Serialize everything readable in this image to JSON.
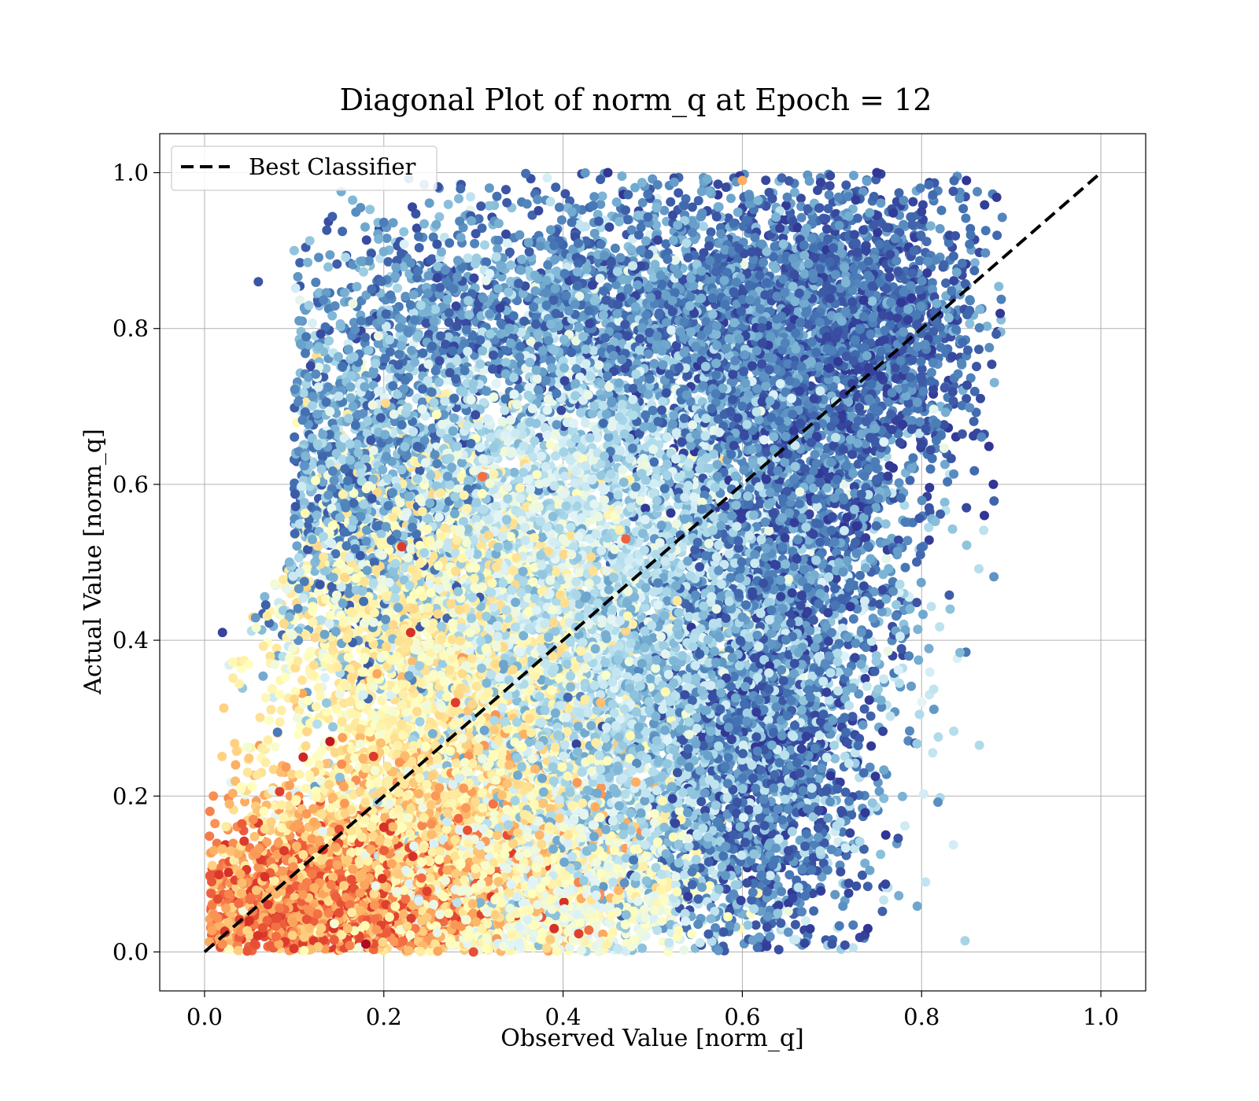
{
  "chart_data": {
    "type": "scatter",
    "title": "Diagonal Plot of norm_q at Epoch = 12",
    "xlabel": "Observed Value [norm_q]",
    "ylabel": "Actual Value [norm_q]",
    "xlim": [
      -0.05,
      1.05
    ],
    "ylim": [
      -0.05,
      1.05
    ],
    "xticks": [
      "0.0",
      "0.2",
      "0.4",
      "0.6",
      "0.8",
      "1.0"
    ],
    "yticks": [
      "0.0",
      "0.2",
      "0.4",
      "0.6",
      "0.8",
      "1.0"
    ],
    "grid": true,
    "legend": {
      "placement": "upper-left",
      "entries": [
        "Best Classifier"
      ]
    },
    "reference_line": {
      "name": "Best Classifier",
      "x": [
        0.0,
        1.0
      ],
      "y": [
        0.0,
        1.0
      ],
      "style": "dashed",
      "color": "#000000"
    },
    "colormap": "RdYlBu",
    "point_count_estimate": 20000,
    "points": [
      {
        "x": 0.02,
        "y": 0.01,
        "c": 0.75
      },
      {
        "x": 0.05,
        "y": 0.04,
        "c": 0.9
      },
      {
        "x": 0.08,
        "y": 0.02,
        "c": 0.8
      },
      {
        "x": 0.12,
        "y": 0.1,
        "c": 0.78
      },
      {
        "x": 0.15,
        "y": 0.05,
        "c": 0.85
      },
      {
        "x": 0.18,
        "y": 0.01,
        "c": 0.98
      },
      {
        "x": 0.04,
        "y": 0.1,
        "c": 0.7
      },
      {
        "x": 0.1,
        "y": 0.16,
        "c": 0.72
      },
      {
        "x": 0.14,
        "y": 0.27,
        "c": 0.95
      },
      {
        "x": 0.11,
        "y": 0.25,
        "c": 0.92
      },
      {
        "x": 0.2,
        "y": 0.16,
        "c": 0.9
      },
      {
        "x": 0.23,
        "y": 0.41,
        "c": 0.9
      },
      {
        "x": 0.22,
        "y": 0.52,
        "c": 0.88
      },
      {
        "x": 0.31,
        "y": 0.61,
        "c": 0.8
      },
      {
        "x": 0.28,
        "y": 0.32,
        "c": 0.88
      },
      {
        "x": 0.47,
        "y": 0.53,
        "c": 0.82
      },
      {
        "x": 0.39,
        "y": 0.03,
        "c": 0.9
      },
      {
        "x": 0.3,
        "y": 0.0,
        "c": 0.85
      },
      {
        "x": 0.35,
        "y": 0.35,
        "c": 0.4
      },
      {
        "x": 0.45,
        "y": 0.45,
        "c": 0.2
      },
      {
        "x": 0.6,
        "y": 0.7,
        "c": 0.1
      },
      {
        "x": 0.7,
        "y": 0.85,
        "c": 0.05
      },
      {
        "x": 0.8,
        "y": 0.95,
        "c": 0.02
      },
      {
        "x": 0.85,
        "y": 0.57,
        "c": 0.03
      },
      {
        "x": 0.87,
        "y": 0.56,
        "c": 0.0
      },
      {
        "x": 0.88,
        "y": 0.6,
        "c": 0.0
      },
      {
        "x": 0.76,
        "y": 0.15,
        "c": 0.0
      },
      {
        "x": 0.74,
        "y": 0.03,
        "c": 0.0
      },
      {
        "x": 0.7,
        "y": 0.01,
        "c": 0.05
      },
      {
        "x": 0.02,
        "y": 0.41,
        "c": 0.02
      },
      {
        "x": 0.06,
        "y": 0.86,
        "c": 0.05
      },
      {
        "x": 0.1,
        "y": 0.9,
        "c": 0.25
      },
      {
        "x": 0.45,
        "y": 1.0,
        "c": 0.0
      },
      {
        "x": 0.6,
        "y": 0.99,
        "c": 0.7
      },
      {
        "x": 0.75,
        "y": 1.0,
        "c": 0.0
      },
      {
        "x": 0.85,
        "y": 0.99,
        "c": 0.0
      }
    ],
    "clouds": [
      {
        "cx": 0.14,
        "cy": 0.06,
        "sx": 0.1,
        "sy": 0.05,
        "n": 2200,
        "cmin": 0.62,
        "cmax": 0.9
      },
      {
        "cx": 0.25,
        "cy": 0.14,
        "sx": 0.1,
        "sy": 0.08,
        "n": 1800,
        "cmin": 0.5,
        "cmax": 0.75
      },
      {
        "cx": 0.26,
        "cy": 0.4,
        "sx": 0.1,
        "sy": 0.12,
        "n": 2200,
        "cmin": 0.45,
        "cmax": 0.62
      },
      {
        "cx": 0.35,
        "cy": 0.08,
        "sx": 0.1,
        "sy": 0.07,
        "n": 1800,
        "cmin": 0.38,
        "cmax": 0.55
      },
      {
        "cx": 0.4,
        "cy": 0.55,
        "sx": 0.15,
        "sy": 0.15,
        "n": 3200,
        "cmin": 0.25,
        "cmax": 0.45
      },
      {
        "cx": 0.5,
        "cy": 0.3,
        "sx": 0.12,
        "sy": 0.15,
        "n": 2600,
        "cmin": 0.18,
        "cmax": 0.38
      },
      {
        "cx": 0.48,
        "cy": 0.82,
        "sx": 0.18,
        "sy": 0.08,
        "n": 2600,
        "cmin": 0.02,
        "cmax": 0.25
      },
      {
        "cx": 0.65,
        "cy": 0.65,
        "sx": 0.08,
        "sy": 0.18,
        "n": 2400,
        "cmin": 0.0,
        "cmax": 0.22
      },
      {
        "cx": 0.62,
        "cy": 0.25,
        "sx": 0.06,
        "sy": 0.15,
        "n": 1600,
        "cmin": 0.0,
        "cmax": 0.18
      },
      {
        "cx": 0.75,
        "cy": 0.8,
        "sx": 0.06,
        "sy": 0.1,
        "n": 900,
        "cmin": 0.0,
        "cmax": 0.15
      },
      {
        "cx": 0.18,
        "cy": 0.62,
        "sx": 0.07,
        "sy": 0.12,
        "n": 1300,
        "cmin": 0.05,
        "cmax": 0.3
      }
    ]
  }
}
